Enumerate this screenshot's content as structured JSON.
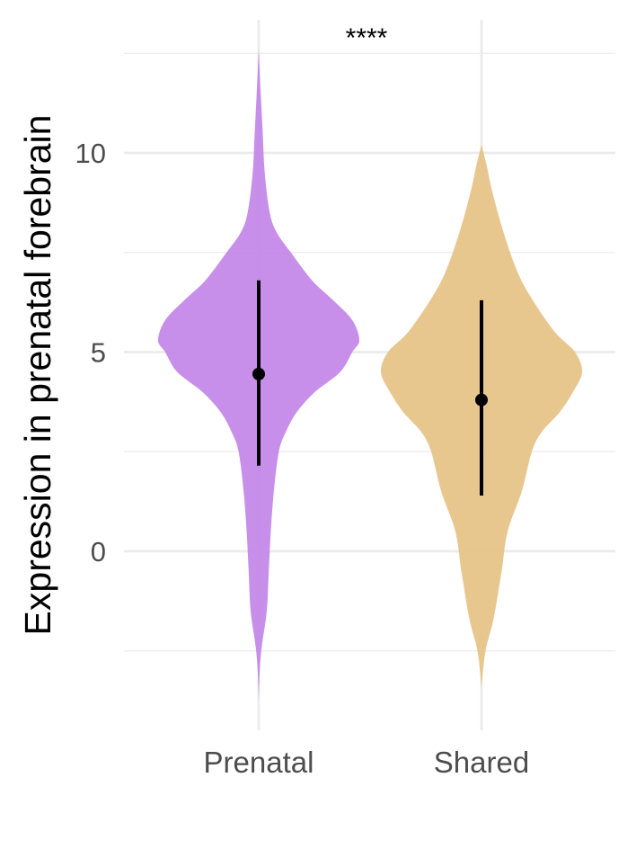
{
  "chart_data": {
    "type": "violin",
    "xlabel": "",
    "ylabel": "Expression in prenatal forebrain",
    "ylim": [
      -4.4,
      13.3
    ],
    "yticks": [
      0,
      5,
      10
    ],
    "y_minor_ticks": [
      -2.5,
      2.5,
      7.5,
      12.5
    ],
    "grid": true,
    "significance": "****",
    "categories": [
      "Prenatal",
      "Shared"
    ],
    "series": [
      {
        "category": "Prenatal",
        "color": "#c285e8",
        "mean": 4.45,
        "interval": [
          2.15,
          6.8
        ],
        "range": [
          -3.7,
          12.6
        ],
        "density": [
          [
            -3.7,
            0.0
          ],
          [
            -3.0,
            0.01
          ],
          [
            -2.4,
            0.03
          ],
          [
            -1.5,
            0.08
          ],
          [
            -0.5,
            0.1
          ],
          [
            0.5,
            0.12
          ],
          [
            1.5,
            0.15
          ],
          [
            2.5,
            0.2
          ],
          [
            3.0,
            0.27
          ],
          [
            3.5,
            0.38
          ],
          [
            4.0,
            0.56
          ],
          [
            4.5,
            0.81
          ],
          [
            5.0,
            0.93
          ],
          [
            5.3,
            1.0
          ],
          [
            5.8,
            0.93
          ],
          [
            6.3,
            0.74
          ],
          [
            6.8,
            0.53
          ],
          [
            7.5,
            0.32
          ],
          [
            8.0,
            0.18
          ],
          [
            8.5,
            0.11
          ],
          [
            9.5,
            0.06
          ],
          [
            10.5,
            0.04
          ],
          [
            11.5,
            0.02
          ],
          [
            12.6,
            0.0
          ]
        ]
      },
      {
        "category": "Shared",
        "color": "#e6c286",
        "mean": 3.8,
        "interval": [
          1.4,
          6.3
        ],
        "range": [
          -3.4,
          10.2
        ],
        "density": [
          [
            -3.4,
            0.0
          ],
          [
            -2.5,
            0.04
          ],
          [
            -1.7,
            0.12
          ],
          [
            -0.5,
            0.2
          ],
          [
            0.5,
            0.26
          ],
          [
            1.5,
            0.4
          ],
          [
            2.5,
            0.5
          ],
          [
            3.0,
            0.6
          ],
          [
            3.5,
            0.78
          ],
          [
            4.0,
            0.91
          ],
          [
            4.5,
            1.0
          ],
          [
            5.0,
            0.93
          ],
          [
            5.5,
            0.73
          ],
          [
            6.3,
            0.51
          ],
          [
            7.0,
            0.36
          ],
          [
            8.0,
            0.22
          ],
          [
            9.0,
            0.11
          ],
          [
            9.7,
            0.05
          ],
          [
            10.2,
            0.0
          ]
        ]
      }
    ]
  }
}
